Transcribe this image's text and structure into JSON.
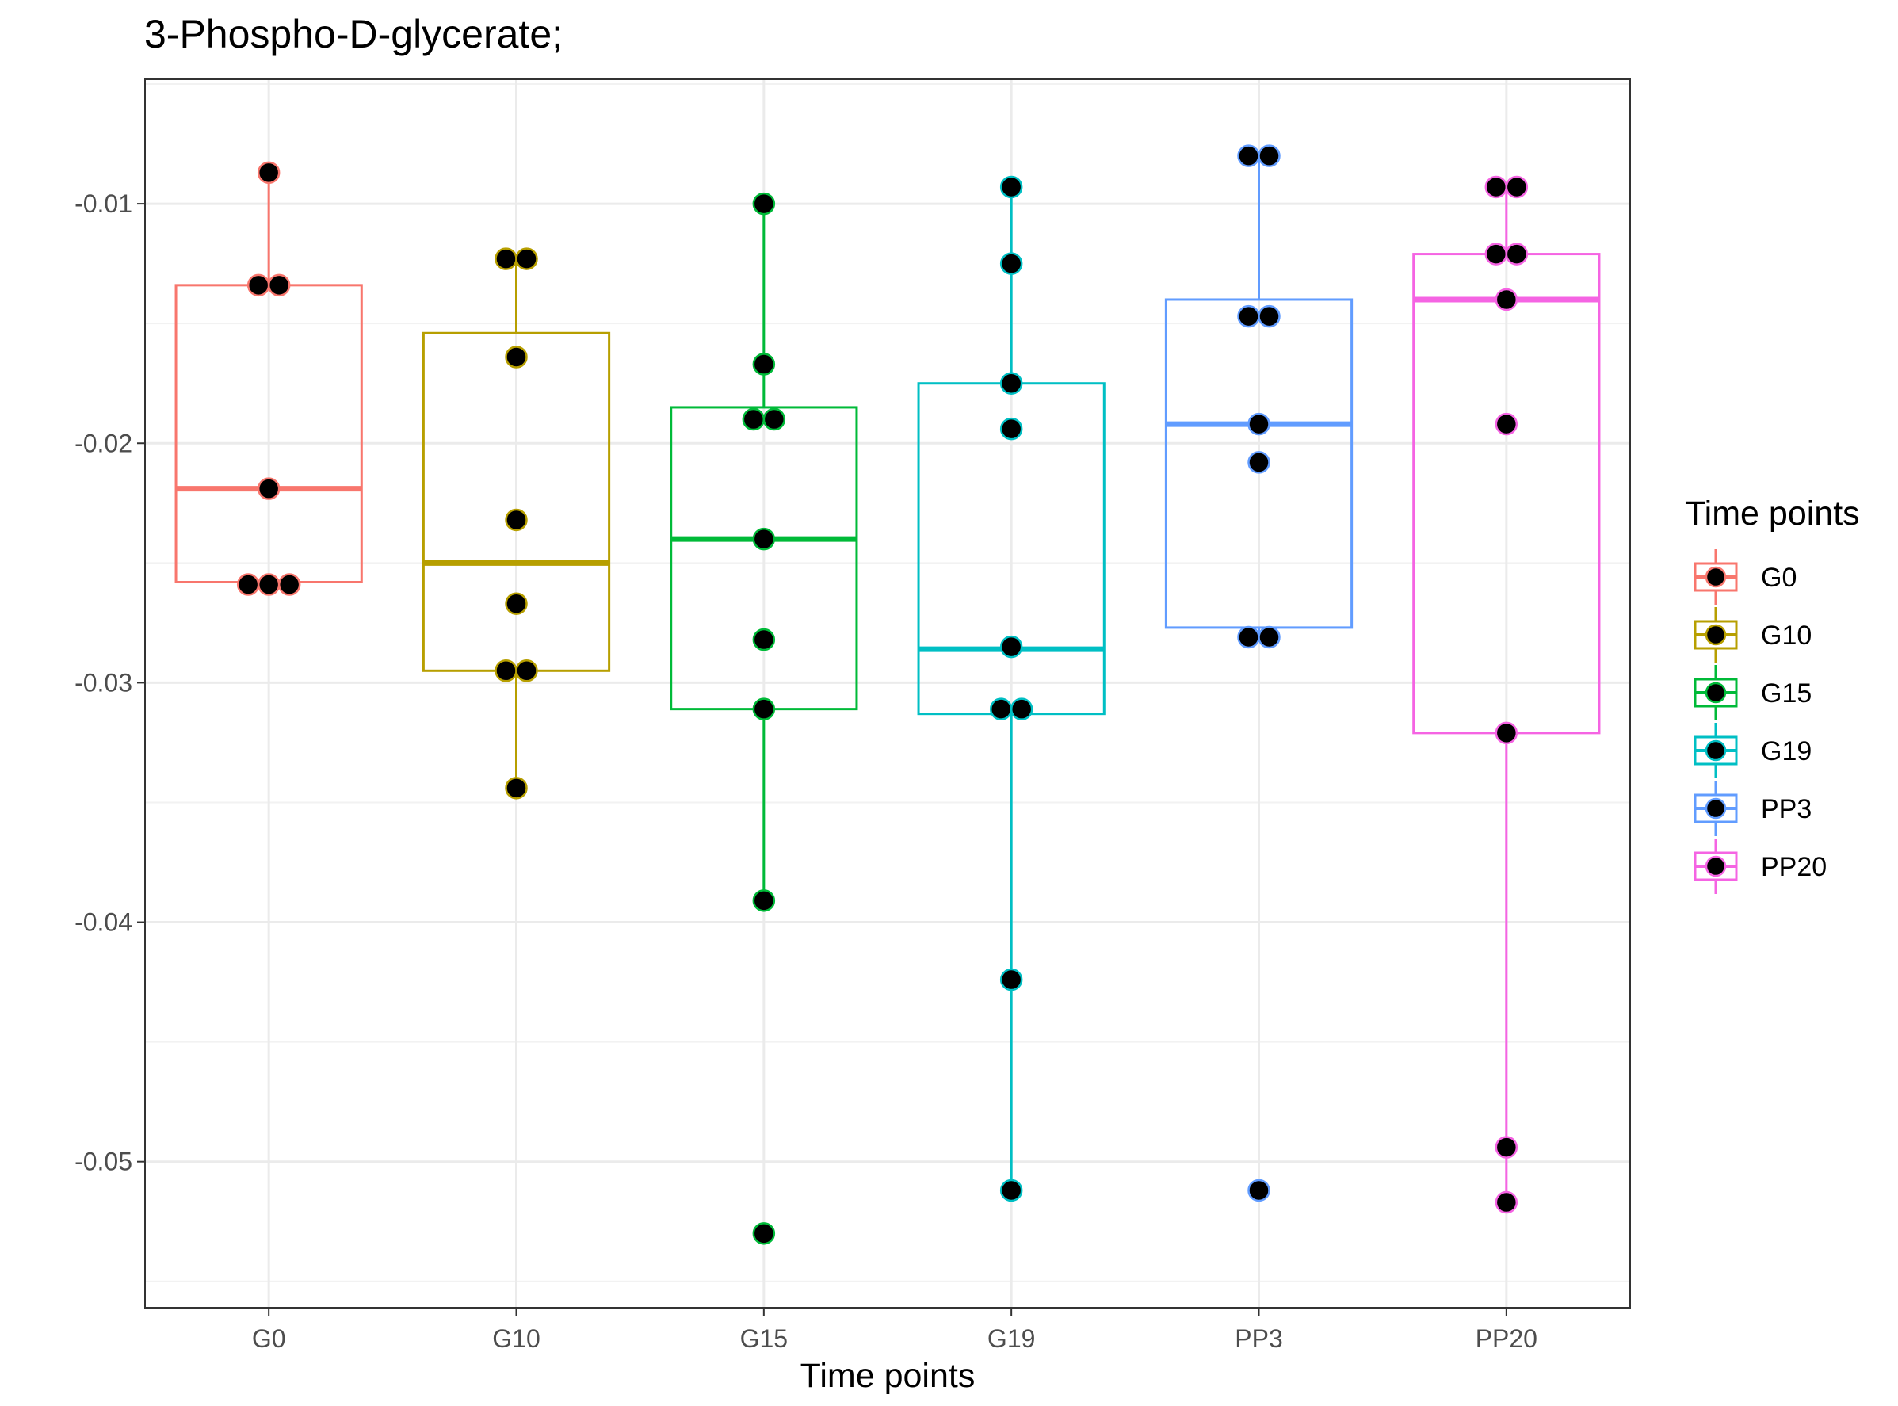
{
  "chart_data": {
    "type": "boxplot",
    "title": "3-Phospho-D-glycerate;",
    "xlabel": "Time points",
    "ylabel": "",
    "ylim": [
      -0.0561,
      -0.0048
    ],
    "yticks": [
      -0.01,
      -0.02,
      -0.03,
      -0.04,
      -0.05
    ],
    "ytick_labels": [
      "-0.01",
      "-0.02",
      "-0.03",
      "-0.04",
      "-0.05"
    ],
    "grid": true,
    "legend": {
      "title": "Time points",
      "placement": "right"
    },
    "categories": [
      "G0",
      "G10",
      "G15",
      "G19",
      "PP3",
      "PP20"
    ],
    "series": [
      {
        "name": "G0",
        "color": "#F8766D",
        "box": {
          "whisker_low": -0.0259,
          "q1": -0.0258,
          "median": -0.0219,
          "q3": -0.0134,
          "whisker_high": -0.0087
        },
        "points": [
          -0.0087,
          -0.0134,
          -0.0134,
          -0.0219,
          -0.0259,
          -0.0259,
          -0.0259
        ]
      },
      {
        "name": "G10",
        "color": "#B79F00",
        "box": {
          "whisker_low": -0.0344,
          "q1": -0.0295,
          "median": -0.025,
          "q3": -0.0154,
          "whisker_high": -0.0123
        },
        "points": [
          -0.0123,
          -0.0123,
          -0.0164,
          -0.0232,
          -0.0267,
          -0.0295,
          -0.0295,
          -0.0344
        ]
      },
      {
        "name": "G15",
        "color": "#00BA38",
        "box": {
          "whisker_low": -0.0391,
          "q1": -0.0311,
          "median": -0.024,
          "q3": -0.0185,
          "whisker_high": -0.01
        },
        "points": [
          -0.01,
          -0.0167,
          -0.019,
          -0.019,
          -0.024,
          -0.0282,
          -0.0311,
          -0.0391,
          -0.053
        ]
      },
      {
        "name": "G19",
        "color": "#00BFC4",
        "box": {
          "whisker_low": -0.0512,
          "q1": -0.0313,
          "median": -0.0286,
          "q3": -0.0175,
          "whisker_high": -0.0093
        },
        "points": [
          -0.0093,
          -0.0125,
          -0.0175,
          -0.0194,
          -0.0285,
          -0.0311,
          -0.0311,
          -0.0424,
          -0.0512
        ]
      },
      {
        "name": "PP3",
        "color": "#619CFF",
        "box": {
          "whisker_low": -0.0281,
          "q1": -0.0277,
          "median": -0.0192,
          "q3": -0.014,
          "whisker_high": -0.008
        },
        "points": [
          -0.008,
          -0.008,
          -0.0147,
          -0.0147,
          -0.0192,
          -0.0208,
          -0.0281,
          -0.0281,
          -0.0512
        ]
      },
      {
        "name": "PP20",
        "color": "#F564E3",
        "box": {
          "whisker_low": -0.0517,
          "q1": -0.0321,
          "median": -0.014,
          "q3": -0.0121,
          "whisker_high": -0.0093
        },
        "points": [
          -0.0093,
          -0.0093,
          -0.0121,
          -0.0121,
          -0.014,
          -0.0192,
          -0.0321,
          -0.0494,
          -0.0517
        ]
      }
    ]
  }
}
